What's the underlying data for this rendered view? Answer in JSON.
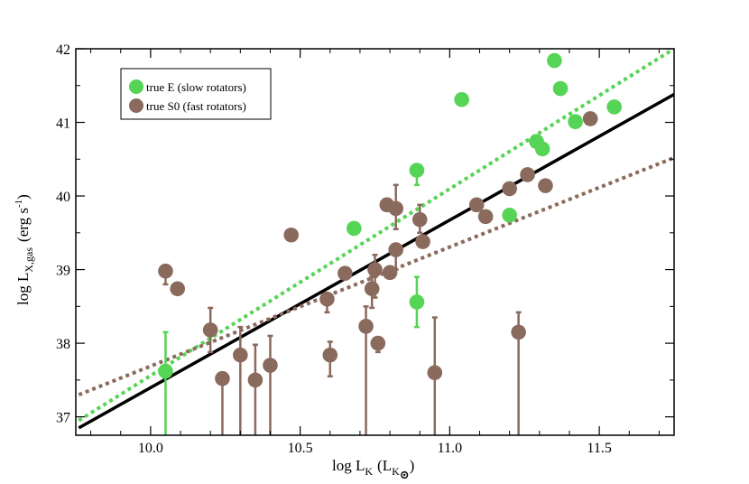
{
  "chart_data": {
    "type": "scatter",
    "title": "",
    "xlabel": {
      "main": "log L",
      "sub": "K",
      "paren_open": "(L",
      "unit_sub": "K",
      "sun_symbol": "⊙",
      "paren_close": ")"
    },
    "ylabel": {
      "main": "log L",
      "sub": "X,gas",
      "units_pre": "(erg s",
      "units_sup": "-1",
      "units_post": ")"
    },
    "xlim": [
      9.75,
      11.75
    ],
    "ylim": [
      36.75,
      42.0
    ],
    "xticks": [
      {
        "v": 10.0,
        "label": "10.0"
      },
      {
        "v": 10.5,
        "label": "10.5"
      },
      {
        "v": 11.0,
        "label": "11.0"
      },
      {
        "v": 11.5,
        "label": "11.5"
      }
    ],
    "yticks": [
      {
        "v": 37,
        "label": "37"
      },
      {
        "v": 38,
        "label": "38"
      },
      {
        "v": 39,
        "label": "39"
      },
      {
        "v": 40,
        "label": "40"
      },
      {
        "v": 41,
        "label": "41"
      },
      {
        "v": 42,
        "label": "42"
      }
    ],
    "colors": {
      "E": "#55d455",
      "S0": "#8a6a5c",
      "fit": "#000000"
    },
    "legend": {
      "position": "top-left",
      "entries": [
        {
          "label": "true E (slow rotators)",
          "series": "E"
        },
        {
          "label": "true S0 (fast rotators)",
          "series": "S0"
        }
      ]
    },
    "series": [
      {
        "name": "true E (slow rotators)",
        "key": "E",
        "points": [
          {
            "x": 10.05,
            "y": 37.62,
            "lo": 36.75,
            "hi": 38.15
          },
          {
            "x": 10.68,
            "y": 39.56
          },
          {
            "x": 10.89,
            "y": 38.56,
            "lo": 38.22,
            "hi": 38.9
          },
          {
            "x": 10.89,
            "y": 40.35,
            "lo": 40.15
          },
          {
            "x": 11.04,
            "y": 41.31
          },
          {
            "x": 11.2,
            "y": 39.74
          },
          {
            "x": 11.29,
            "y": 40.74
          },
          {
            "x": 11.31,
            "y": 40.64
          },
          {
            "x": 11.35,
            "y": 41.84
          },
          {
            "x": 11.37,
            "y": 41.46
          },
          {
            "x": 11.42,
            "y": 41.01
          },
          {
            "x": 11.55,
            "y": 41.21
          }
        ]
      },
      {
        "name": "true S0 (fast rotators)",
        "key": "S0",
        "points": [
          {
            "x": 10.05,
            "y": 38.98,
            "lo": 38.8
          },
          {
            "x": 10.09,
            "y": 38.74
          },
          {
            "x": 10.2,
            "y": 38.18,
            "lo": 37.88,
            "hi": 38.48
          },
          {
            "x": 10.24,
            "y": 37.52,
            "lo": 36.75
          },
          {
            "x": 10.3,
            "y": 37.84,
            "lo": 36.75,
            "hi": 38.22
          },
          {
            "x": 10.35,
            "y": 37.5,
            "lo": 36.75,
            "hi": 37.98
          },
          {
            "x": 10.4,
            "y": 37.7,
            "lo": 36.75,
            "hi": 38.1
          },
          {
            "x": 10.47,
            "y": 39.47
          },
          {
            "x": 10.59,
            "y": 38.6,
            "lo": 38.42
          },
          {
            "x": 10.6,
            "y": 37.84,
            "lo": 37.55,
            "hi": 38.02
          },
          {
            "x": 10.65,
            "y": 38.95
          },
          {
            "x": 10.72,
            "y": 38.23,
            "lo": 36.75,
            "hi": 38.5
          },
          {
            "x": 10.74,
            "y": 38.74,
            "lo": 38.48,
            "hi": 38.9
          },
          {
            "x": 10.75,
            "y": 39.0,
            "lo": 38.62,
            "hi": 39.2
          },
          {
            "x": 10.76,
            "y": 38.0,
            "lo": 37.88
          },
          {
            "x": 10.79,
            "y": 39.88
          },
          {
            "x": 10.8,
            "y": 38.96
          },
          {
            "x": 10.82,
            "y": 39.83,
            "lo": 39.55,
            "hi": 40.15
          },
          {
            "x": 10.82,
            "y": 39.27,
            "lo": 39.0
          },
          {
            "x": 10.9,
            "y": 39.68,
            "lo": 39.5,
            "hi": 39.88
          },
          {
            "x": 10.91,
            "y": 39.38
          },
          {
            "x": 10.95,
            "y": 37.6,
            "lo": 36.75,
            "hi": 38.35
          },
          {
            "x": 11.09,
            "y": 39.88
          },
          {
            "x": 11.12,
            "y": 39.72
          },
          {
            "x": 11.2,
            "y": 40.1
          },
          {
            "x": 11.23,
            "y": 38.15,
            "lo": 36.75,
            "hi": 38.42
          },
          {
            "x": 11.26,
            "y": 40.29
          },
          {
            "x": 11.32,
            "y": 40.14
          },
          {
            "x": 11.47,
            "y": 41.05
          }
        ]
      }
    ],
    "fit_lines": [
      {
        "name": "all-fit",
        "x": [
          9.76,
          11.75
        ],
        "y": [
          36.85,
          41.38
        ],
        "color_key": "fit",
        "style": "solid"
      },
      {
        "name": "E-fit",
        "x": [
          9.76,
          11.75
        ],
        "y": [
          36.95,
          42.0
        ],
        "color_key": "E",
        "style": "dotted"
      },
      {
        "name": "S0-fit",
        "x": [
          9.76,
          11.75
        ],
        "y": [
          37.3,
          40.52
        ],
        "color_key": "S0",
        "style": "dotted"
      }
    ]
  }
}
